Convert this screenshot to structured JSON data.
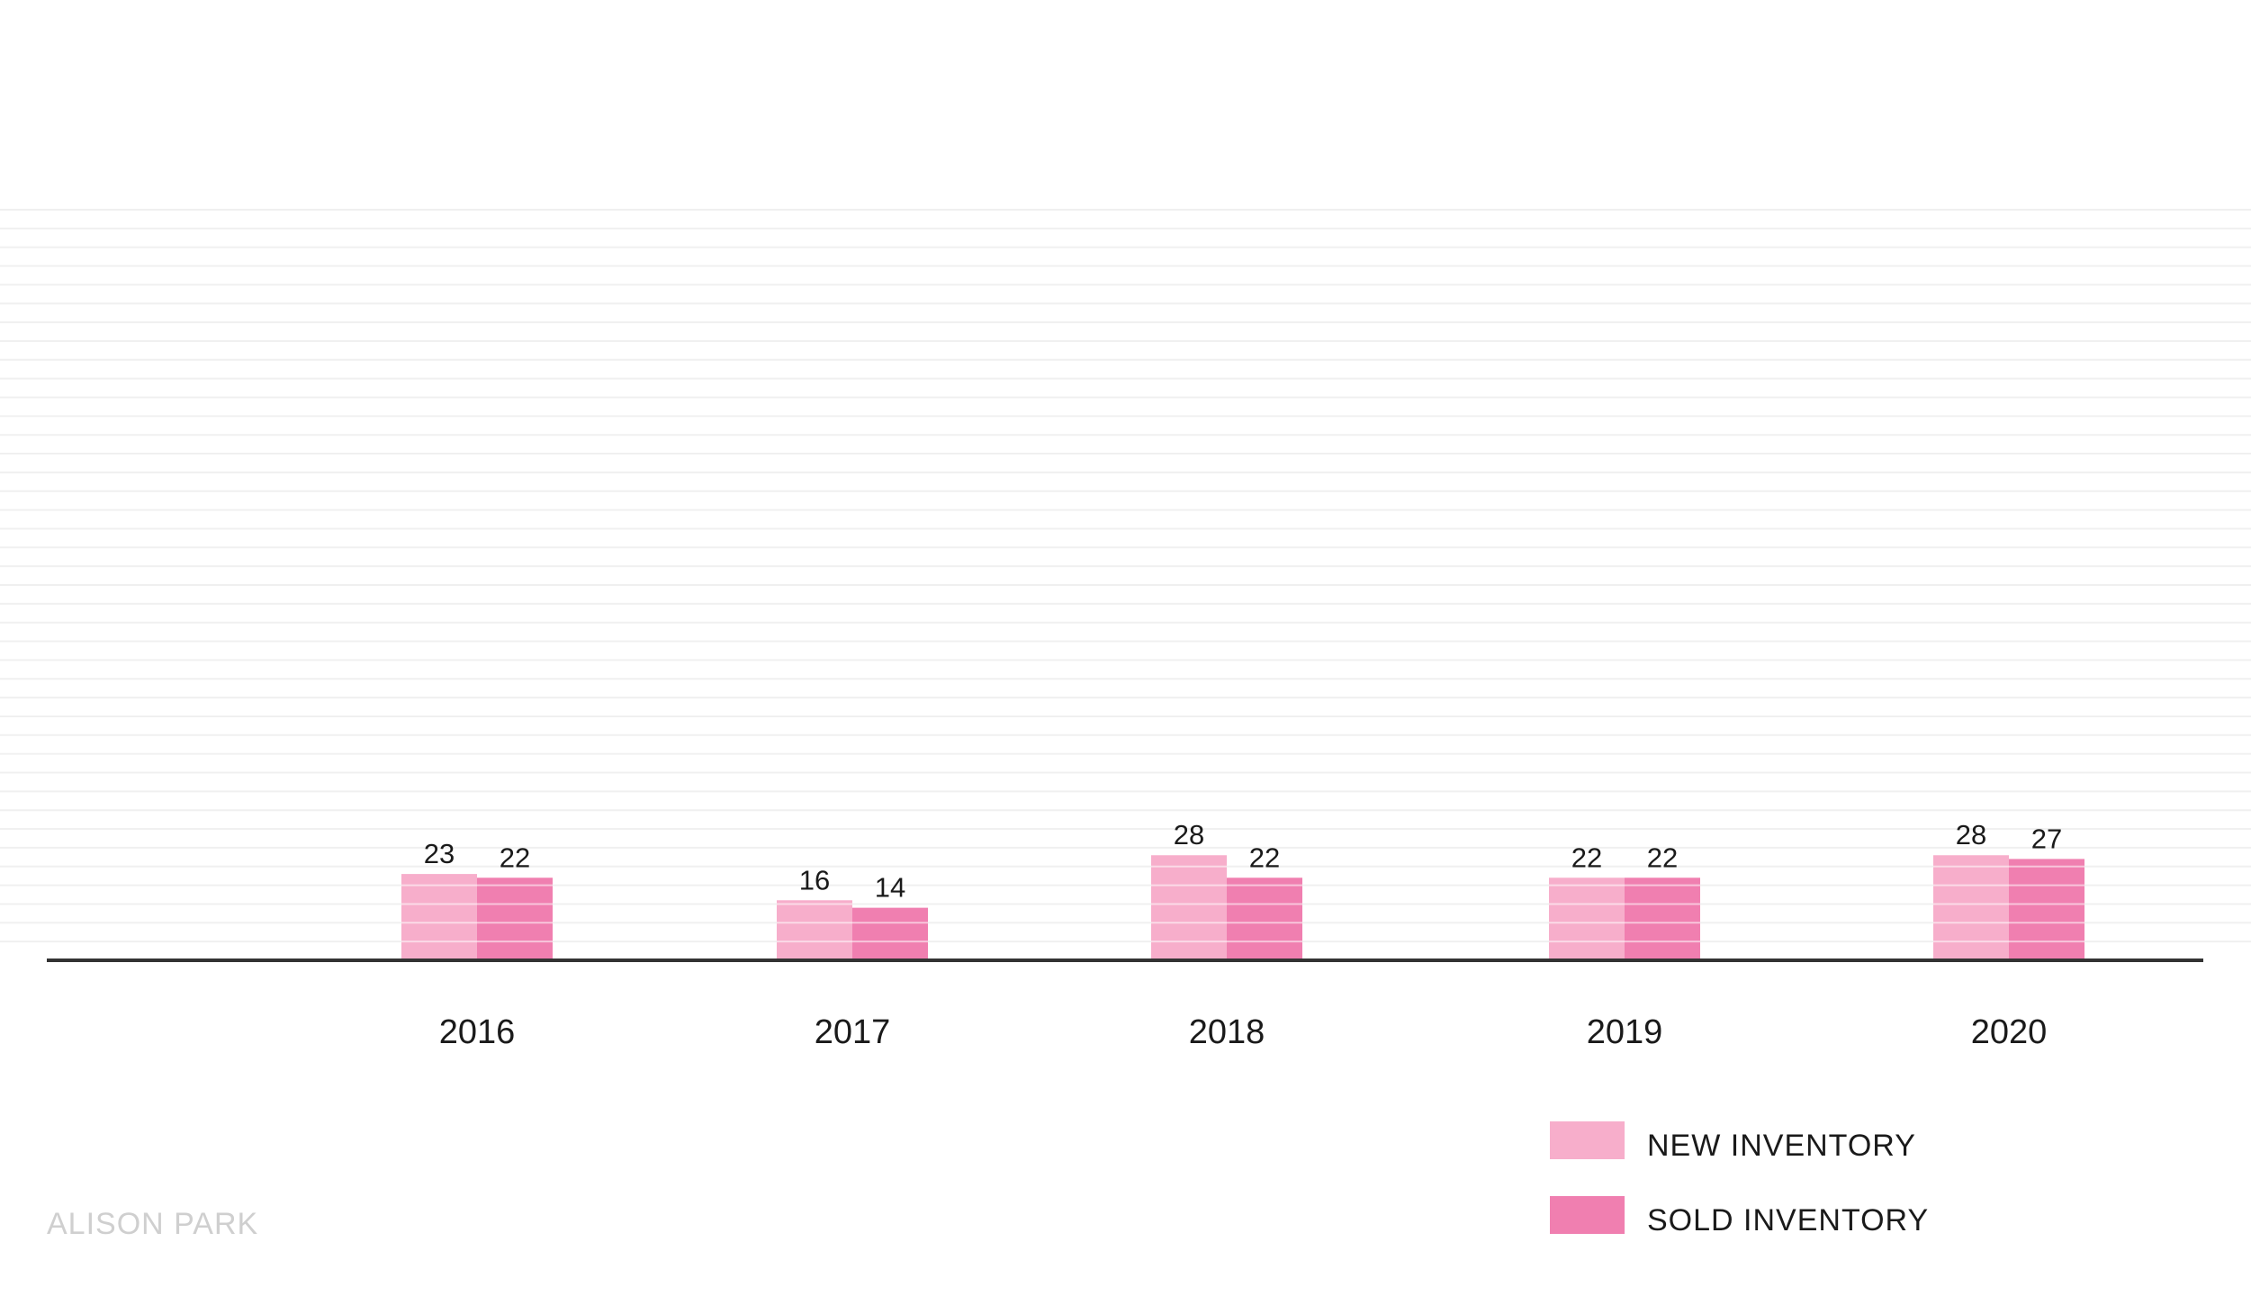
{
  "chart_data": {
    "type": "bar",
    "categories": [
      "2016",
      "2017",
      "2018",
      "2019",
      "2020"
    ],
    "series": [
      {
        "name": "NEW INVENTORY",
        "values": [
          23,
          16,
          28,
          22,
          28
        ],
        "color": "#f7aecb"
      },
      {
        "name": "SOLD INVENTORY",
        "values": [
          22,
          14,
          22,
          22,
          27
        ],
        "color": "#f07fb0"
      }
    ],
    "ylim": [
      0,
      200
    ],
    "grid": true,
    "legend_position": "bottom-right",
    "data_labels": true
  },
  "watermark": "ALISON PARK"
}
